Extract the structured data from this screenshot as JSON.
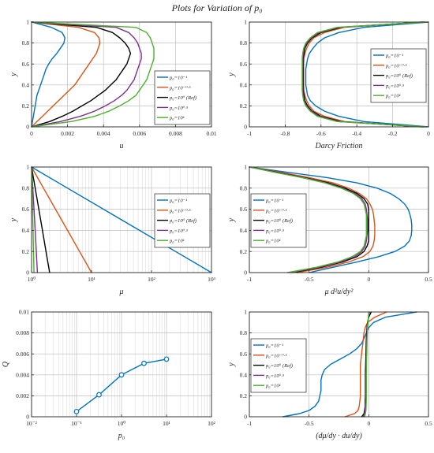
{
  "figure_title": "Plots for Variation of p₀",
  "colors": {
    "s1": "#0072BD",
    "s2": "#D95319",
    "s3": "#000000",
    "s4": "#7E2F8E",
    "s5": "#4DAF2E",
    "marker_line": "#0072BD"
  },
  "legend_labels": [
    "p₀=10⁻¹",
    "p₀=10⁻⁰·⁵",
    "p₀=10⁰ (Ref)",
    "p₀=10⁰·⁵",
    "p₀=10¹"
  ],
  "chart_data": [
    {
      "id": "u",
      "type": "line",
      "xlabel": "u",
      "ylabel": "y",
      "xlim": [
        0,
        0.01
      ],
      "ylim": [
        0,
        1
      ],
      "xticks": [
        0,
        0.002,
        0.004,
        0.006,
        0.008,
        0.01
      ],
      "xticklabels": [
        "0",
        "0.002",
        "0.004",
        "0.006",
        "0.008",
        "0.01"
      ],
      "yticks": [
        0,
        0.2,
        0.4,
        0.6,
        0.8,
        1
      ],
      "yticklabels": [
        "0",
        "0.2",
        "0.4",
        "0.6",
        "0.8",
        "1"
      ],
      "grid": true,
      "legend": "right",
      "y": [
        0,
        0.05,
        0.1,
        0.15,
        0.2,
        0.25,
        0.3,
        0.35,
        0.4,
        0.45,
        0.5,
        0.55,
        0.6,
        0.65,
        0.7,
        0.75,
        0.8,
        0.85,
        0.9,
        0.95,
        1
      ],
      "series": [
        {
          "x": [
            0,
            5e-05,
            0.0001,
            0.00015,
            0.0002,
            0.00025,
            0.0003,
            0.0004,
            0.0005,
            0.0006,
            0.0007,
            0.0008,
            0.00095,
            0.00115,
            0.0014,
            0.0016,
            0.0018,
            0.00185,
            0.0017,
            0.0011,
            0
          ]
        },
        {
          "x": [
            0,
            0.0003,
            0.0006,
            0.0009,
            0.0012,
            0.0015,
            0.0018,
            0.0021,
            0.0024,
            0.0026,
            0.0028,
            0.003,
            0.0032,
            0.0034,
            0.0036,
            0.0037,
            0.0038,
            0.00375,
            0.0035,
            0.0026,
            0
          ]
        },
        {
          "x": [
            0,
            0.001,
            0.0017,
            0.0023,
            0.0028,
            0.0033,
            0.0037,
            0.0041,
            0.0044,
            0.0047,
            0.0049,
            0.0051,
            0.0053,
            0.0054,
            0.0055,
            0.0054,
            0.0052,
            0.0049,
            0.0045,
            0.0036,
            0
          ]
        },
        {
          "x": [
            0,
            0.0016,
            0.0027,
            0.0035,
            0.0041,
            0.0046,
            0.005,
            0.0053,
            0.0055,
            0.0057,
            0.0058,
            0.0059,
            0.006,
            0.0061,
            0.0061,
            0.006,
            0.0059,
            0.0057,
            0.0054,
            0.0047,
            0
          ]
        },
        {
          "x": [
            0,
            0.0022,
            0.0035,
            0.0043,
            0.0049,
            0.0054,
            0.0058,
            0.006,
            0.0062,
            0.0064,
            0.0065,
            0.0066,
            0.0067,
            0.0068,
            0.0068,
            0.0068,
            0.0067,
            0.0066,
            0.0064,
            0.0058,
            0
          ]
        }
      ]
    },
    {
      "id": "darcy",
      "type": "line",
      "xlabel": "Darcy Friction",
      "ylabel": "y",
      "xlim": [
        -1,
        0
      ],
      "ylim": [
        0,
        1
      ],
      "xticks": [
        -1,
        -0.8,
        -0.6,
        -0.4,
        -0.2,
        0
      ],
      "xticklabels": [
        "-1",
        "-0.8",
        "-0.6",
        "-0.4",
        "-0.2",
        "0"
      ],
      "yticks": [
        0,
        0.2,
        0.4,
        0.6,
        0.8,
        1
      ],
      "yticklabels": [
        "0",
        "0.2",
        "0.4",
        "0.6",
        "0.8",
        "1"
      ],
      "grid": true,
      "legend": "right",
      "y": [
        0,
        0.05,
        0.1,
        0.15,
        0.2,
        0.25,
        0.3,
        0.35,
        0.4,
        0.45,
        0.5,
        0.55,
        0.6,
        0.65,
        0.7,
        0.75,
        0.8,
        0.85,
        0.9,
        0.95,
        1
      ],
      "series": [
        {
          "x": [
            0,
            -0.36,
            -0.5,
            -0.58,
            -0.63,
            -0.66,
            -0.675,
            -0.68,
            -0.685,
            -0.685,
            -0.685,
            -0.685,
            -0.68,
            -0.675,
            -0.665,
            -0.645,
            -0.62,
            -0.58,
            -0.5,
            -0.36,
            0
          ]
        },
        {
          "x": [
            -0.04,
            -0.47,
            -0.58,
            -0.64,
            -0.665,
            -0.68,
            -0.69,
            -0.695,
            -0.697,
            -0.697,
            -0.697,
            -0.697,
            -0.697,
            -0.695,
            -0.69,
            -0.68,
            -0.665,
            -0.64,
            -0.58,
            -0.47,
            -0.04
          ]
        },
        {
          "x": [
            -0.03,
            -0.49,
            -0.6,
            -0.65,
            -0.675,
            -0.69,
            -0.695,
            -0.7,
            -0.7,
            -0.7,
            -0.7,
            -0.7,
            -0.7,
            -0.7,
            -0.695,
            -0.69,
            -0.675,
            -0.65,
            -0.6,
            -0.49,
            -0.03
          ]
        },
        {
          "x": [
            -0.02,
            -0.5,
            -0.61,
            -0.655,
            -0.68,
            -0.695,
            -0.7,
            -0.702,
            -0.703,
            -0.703,
            -0.703,
            -0.703,
            -0.703,
            -0.702,
            -0.7,
            -0.695,
            -0.68,
            -0.655,
            -0.61,
            -0.5,
            -0.02
          ]
        },
        {
          "x": [
            -0.01,
            -0.51,
            -0.62,
            -0.66,
            -0.685,
            -0.697,
            -0.702,
            -0.705,
            -0.705,
            -0.705,
            -0.705,
            -0.705,
            -0.705,
            -0.705,
            -0.702,
            -0.697,
            -0.685,
            -0.66,
            -0.62,
            -0.51,
            -0.01
          ]
        }
      ]
    },
    {
      "id": "mu",
      "type": "line",
      "xlabel": "μ",
      "ylabel": "y",
      "xscale": "log",
      "xlim": [
        1,
        1000
      ],
      "ylim": [
        0,
        1
      ],
      "xticks": [
        1,
        10,
        100,
        1000
      ],
      "xticklabels": [
        "10⁰",
        "10¹",
        "10²",
        "10³"
      ],
      "yticks": [
        0,
        0.2,
        0.4,
        0.6,
        0.8,
        1
      ],
      "yticklabels": [
        "0",
        "0.2",
        "0.4",
        "0.6",
        "0.8",
        "1"
      ],
      "grid": true,
      "legend": "right",
      "y": [
        0,
        0.2,
        0.4,
        0.6,
        0.8,
        1
      ],
      "series": [
        {
          "x": [
            1000,
            251.2,
            63.1,
            15.85,
            3.98,
            1
          ]
        },
        {
          "x": [
            10,
            6.31,
            3.98,
            2.51,
            1.58,
            1
          ]
        },
        {
          "x": [
            2,
            1.74,
            1.52,
            1.32,
            1.15,
            1
          ]
        },
        {
          "x": [
            1.25,
            1.2,
            1.15,
            1.1,
            1.05,
            1
          ]
        },
        {
          "x": [
            1.1,
            1.08,
            1.06,
            1.04,
            1.02,
            1
          ]
        }
      ]
    },
    {
      "id": "mu_d2u",
      "type": "line",
      "xlabel": "μ d²u/dy²",
      "ylabel": "y",
      "xlim": [
        -1,
        0.5
      ],
      "ylim": [
        0,
        1
      ],
      "xticks": [
        -1,
        -0.5,
        0,
        0.5
      ],
      "xticklabels": [
        "-1",
        "-0.5",
        "0",
        "0.5"
      ],
      "yticks": [
        0,
        0.2,
        0.4,
        0.6,
        0.8,
        1
      ],
      "yticklabels": [
        "0",
        "0.2",
        "0.4",
        "0.6",
        "0.8",
        "1"
      ],
      "grid": true,
      "legend": "left",
      "y": [
        0,
        0.05,
        0.1,
        0.15,
        0.2,
        0.25,
        0.3,
        0.35,
        0.4,
        0.45,
        0.5,
        0.55,
        0.6,
        0.65,
        0.7,
        0.75,
        0.8,
        0.85,
        0.9,
        0.95,
        1
      ],
      "series": [
        {
          "x": [
            -0.5,
            -0.3,
            -0.1,
            0.08,
            0.22,
            0.3,
            0.34,
            0.355,
            0.36,
            0.36,
            0.355,
            0.345,
            0.33,
            0.3,
            0.25,
            0.18,
            0.07,
            -0.1,
            -0.35,
            -0.68,
            -1
          ]
        },
        {
          "x": [
            -0.6,
            -0.35,
            -0.17,
            -0.05,
            0.01,
            0.035,
            0.045,
            0.05,
            0.05,
            0.05,
            0.045,
            0.04,
            0.03,
            0.01,
            -0.02,
            -0.08,
            -0.17,
            -0.3,
            -0.5,
            -0.74,
            -1
          ]
        },
        {
          "x": [
            -0.64,
            -0.4,
            -0.22,
            -0.1,
            -0.04,
            -0.015,
            0,
            0,
            0,
            0,
            0,
            0,
            0,
            -0.01,
            -0.04,
            -0.1,
            -0.2,
            -0.34,
            -0.54,
            -0.77,
            -1
          ]
        },
        {
          "x": [
            -0.66,
            -0.42,
            -0.24,
            -0.12,
            -0.06,
            -0.03,
            -0.02,
            -0.015,
            -0.01,
            -0.01,
            -0.01,
            -0.015,
            -0.02,
            -0.03,
            -0.06,
            -0.12,
            -0.22,
            -0.36,
            -0.55,
            -0.78,
            -1
          ]
        },
        {
          "x": [
            -0.68,
            -0.44,
            -0.26,
            -0.14,
            -0.07,
            -0.04,
            -0.03,
            -0.02,
            -0.02,
            -0.02,
            -0.02,
            -0.02,
            -0.03,
            -0.04,
            -0.07,
            -0.13,
            -0.23,
            -0.37,
            -0.56,
            -0.79,
            -1
          ]
        }
      ]
    },
    {
      "id": "Q",
      "type": "line",
      "markers": true,
      "xlabel": "p₀",
      "ylabel": "Q",
      "xscale": "log",
      "xlim": [
        0.01,
        100
      ],
      "ylim": [
        0,
        0.01
      ],
      "xticks": [
        0.01,
        0.1,
        1,
        10,
        100
      ],
      "xticklabels": [
        "10⁻²",
        "10⁻¹",
        "10⁰",
        "10¹",
        "10²"
      ],
      "yticks": [
        0,
        0.002,
        0.004,
        0.006,
        0.008,
        0.01
      ],
      "yticklabels": [
        "0",
        "0.002",
        "0.004",
        "0.006",
        "0.008",
        "0.01"
      ],
      "grid": true,
      "x": [
        0.1,
        0.3162,
        1,
        3.162,
        10
      ],
      "values": [
        0.0005,
        0.0021,
        0.004,
        0.0051,
        0.0055
      ]
    },
    {
      "id": "dmu_du",
      "type": "line",
      "xlabel": "(dμ/dy · du/dy)",
      "ylabel": "y",
      "xlim": [
        -1,
        0.5
      ],
      "ylim": [
        0,
        1
      ],
      "xticks": [
        -1,
        -0.5,
        0,
        0.5
      ],
      "xticklabels": [
        "-1",
        "-0.5",
        "0",
        "0.5"
      ],
      "yticks": [
        0,
        0.2,
        0.4,
        0.6,
        0.8,
        1
      ],
      "yticklabels": [
        "0",
        "0.2",
        "0.4",
        "0.6",
        "0.8",
        "1"
      ],
      "grid": true,
      "legend": "left",
      "y": [
        0,
        0.03,
        0.06,
        0.1,
        0.15,
        0.2,
        0.25,
        0.3,
        0.35,
        0.4,
        0.45,
        0.5,
        0.55,
        0.6,
        0.65,
        0.7,
        0.75,
        0.8,
        0.85,
        0.9,
        0.95,
        1
      ],
      "series": [
        {
          "x": [
            -0.72,
            -0.58,
            -0.5,
            -0.45,
            -0.42,
            -0.41,
            -0.4,
            -0.4,
            -0.4,
            -0.39,
            -0.37,
            -0.32,
            -0.24,
            -0.16,
            -0.1,
            -0.06,
            -0.04,
            -0.02,
            0,
            0.04,
            0.14,
            0.4
          ]
        },
        {
          "x": [
            -0.2,
            -0.12,
            -0.09,
            -0.08,
            -0.075,
            -0.07,
            -0.07,
            -0.07,
            -0.07,
            -0.07,
            -0.07,
            -0.07,
            -0.065,
            -0.06,
            -0.055,
            -0.05,
            -0.045,
            -0.04,
            -0.03,
            -0.01,
            0.05,
            0.15
          ]
        },
        {
          "x": [
            -0.06,
            -0.04,
            -0.035,
            -0.03,
            -0.03,
            -0.028,
            -0.028,
            -0.028,
            -0.028,
            -0.028,
            -0.027,
            -0.026,
            -0.025,
            -0.024,
            -0.023,
            -0.022,
            -0.02,
            -0.018,
            -0.015,
            -0.01,
            0,
            0.02
          ]
        },
        {
          "x": [
            -0.045,
            -0.035,
            -0.03,
            -0.027,
            -0.025,
            -0.024,
            -0.024,
            -0.024,
            -0.024,
            -0.024,
            -0.023,
            -0.022,
            -0.021,
            -0.02,
            -0.019,
            -0.018,
            -0.016,
            -0.014,
            -0.012,
            -0.008,
            -0.003,
            0.005
          ]
        },
        {
          "x": [
            -0.035,
            -0.028,
            -0.024,
            -0.022,
            -0.021,
            -0.02,
            -0.02,
            -0.02,
            -0.02,
            -0.02,
            -0.019,
            -0.019,
            -0.018,
            -0.017,
            -0.016,
            -0.015,
            -0.014,
            -0.012,
            -0.01,
            -0.007,
            -0.003,
            0
          ]
        }
      ]
    }
  ]
}
